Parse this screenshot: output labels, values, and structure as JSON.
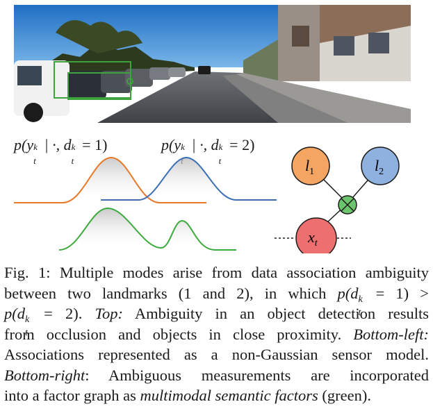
{
  "figure": {
    "plot_labels": {
      "mode1": {
        "p": "p(y",
        "k": "k",
        "t": "t",
        "mid": " | ·, d",
        "k2": "k",
        "t2": "t",
        "eq": " = 1)"
      },
      "mode2": {
        "p": "p(y",
        "k": "k",
        "t": "t",
        "mid": " | ·, d",
        "k2": "k",
        "t2": "t",
        "eq": " = 2)"
      }
    },
    "curves": {
      "top_orange_color": "#e8792b",
      "top_blue_color": "#3a6fb6",
      "bottom_green_color": "#3caa3c"
    },
    "factor_graph": {
      "l1": {
        "base": "l",
        "sub": "1",
        "color": "#f4a561"
      },
      "l2": {
        "base": "l",
        "sub": "2",
        "color": "#8fb1e0"
      },
      "x": {
        "base": "x",
        "sub": "t",
        "color": "#ee6f6f"
      },
      "factor_color": "#6cc46c"
    }
  },
  "caption": {
    "line1": "Fig. 1: Multiple modes arise from data association ambiguity",
    "line2_pre": "between two landmarks (1 and 2), in which ",
    "line2_math": "p(d",
    "line2_sup": "k",
    "line2_sub": "t",
    "line2_post": " = 1) >",
    "line3_math": "p(d",
    "line3_sup": "k",
    "line3_sub": "t",
    "line3_post": " = 2). ",
    "line3_em": "Top:",
    "line3_rest": " Ambiguity in an object detection results",
    "line4_pre": "from occlusion and objects in close proximity. ",
    "line4_em": "Bottom-left:",
    "line5": "Associations represented as a non-Gaussian sensor model.",
    "line6_em": "Bottom-right",
    "line6_rest": ": Ambiguous measurements are incorporated",
    "line7_pre": "into a factor graph as ",
    "line7_em": "multimodal semantic factors",
    "line7_post": " (green)."
  }
}
